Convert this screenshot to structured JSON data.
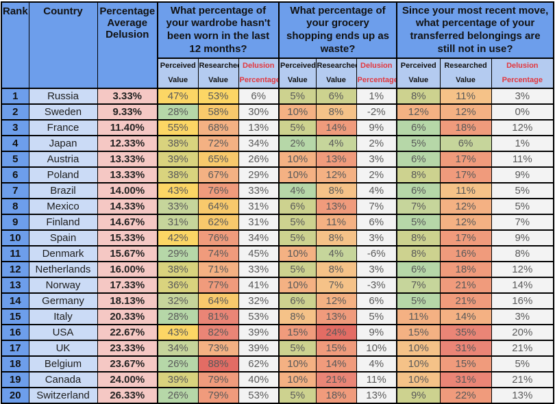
{
  "chart_data": {
    "type": "table",
    "title": "Percentage Average Delusion by Country",
    "headers": {
      "rank": "Rank",
      "country": "Country",
      "avg": "Percentage Average Delusion",
      "groups": [
        "What percentage of your wardrobe hasn't been worn in the last 12 months?",
        "What percentage of your grocery shopping ends up as waste?",
        "Since your most recent move, what percentage of your transferred belongings are still not in use?"
      ],
      "sub": {
        "perceived": "Perceived Value",
        "researched": "Researched Value",
        "delusion": "Delusion Percentage"
      }
    },
    "rows": [
      {
        "rank": "1",
        "country": "Russia",
        "avg": "3.33%",
        "values": [
          [
            "47%",
            "Y"
          ],
          [
            "53%",
            "Y"
          ],
          [
            "6%",
            "W"
          ],
          [
            "5%",
            "K"
          ],
          [
            "6%",
            "K"
          ],
          [
            "1%",
            "W"
          ],
          [
            "8%",
            "K"
          ],
          [
            "11%",
            "T"
          ],
          [
            "3%",
            "W"
          ]
        ]
      },
      {
        "rank": "2",
        "country": "Sweden",
        "avg": "9.33%",
        "values": [
          [
            "28%",
            "G"
          ],
          [
            "58%",
            "YO"
          ],
          [
            "30%",
            "W"
          ],
          [
            "10%",
            "O"
          ],
          [
            "8%",
            "T"
          ],
          [
            "-2%",
            "W"
          ],
          [
            "12%",
            "O"
          ],
          [
            "12%",
            "O"
          ],
          [
            "0%",
            "W"
          ]
        ]
      },
      {
        "rank": "3",
        "country": "France",
        "avg": "11.40%",
        "values": [
          [
            "55%",
            "Y"
          ],
          [
            "68%",
            "O"
          ],
          [
            "13%",
            "W"
          ],
          [
            "5%",
            "K"
          ],
          [
            "14%",
            "S"
          ],
          [
            "9%",
            "W"
          ],
          [
            "6%",
            "G"
          ],
          [
            "18%",
            "S"
          ],
          [
            "12%",
            "W"
          ]
        ]
      },
      {
        "rank": "4",
        "country": "Japan",
        "avg": "12.33%",
        "values": [
          [
            "38%",
            "YG"
          ],
          [
            "72%",
            "O"
          ],
          [
            "34%",
            "W"
          ],
          [
            "2%",
            "G"
          ],
          [
            "4%",
            "GK"
          ],
          [
            "2%",
            "W"
          ],
          [
            "5%",
            "G"
          ],
          [
            "6%",
            "GK"
          ],
          [
            "1%",
            "W"
          ]
        ]
      },
      {
        "rank": "5",
        "country": "Austria",
        "avg": "13.33%",
        "values": [
          [
            "39%",
            "YG"
          ],
          [
            "65%",
            "YO"
          ],
          [
            "26%",
            "W"
          ],
          [
            "10%",
            "O"
          ],
          [
            "13%",
            "S"
          ],
          [
            "3%",
            "W"
          ],
          [
            "6%",
            "G"
          ],
          [
            "17%",
            "S"
          ],
          [
            "11%",
            "W"
          ]
        ]
      },
      {
        "rank": "6",
        "country": "Poland",
        "avg": "13.33%",
        "values": [
          [
            "38%",
            "YG"
          ],
          [
            "67%",
            "O"
          ],
          [
            "29%",
            "W"
          ],
          [
            "10%",
            "O"
          ],
          [
            "12%",
            "O"
          ],
          [
            "2%",
            "W"
          ],
          [
            "8%",
            "K"
          ],
          [
            "17%",
            "S"
          ],
          [
            "9%",
            "W"
          ]
        ]
      },
      {
        "rank": "7",
        "country": "Brazil",
        "avg": "14.00%",
        "values": [
          [
            "43%",
            "Y"
          ],
          [
            "76%",
            "S"
          ],
          [
            "33%",
            "W"
          ],
          [
            "4%",
            "G"
          ],
          [
            "8%",
            "T"
          ],
          [
            "4%",
            "W"
          ],
          [
            "6%",
            "G"
          ],
          [
            "11%",
            "T"
          ],
          [
            "5%",
            "W"
          ]
        ]
      },
      {
        "rank": "8",
        "country": "Mexico",
        "avg": "14.33%",
        "values": [
          [
            "33%",
            "GK"
          ],
          [
            "64%",
            "YO"
          ],
          [
            "31%",
            "W"
          ],
          [
            "6%",
            "K"
          ],
          [
            "13%",
            "S"
          ],
          [
            "7%",
            "W"
          ],
          [
            "7%",
            "GK"
          ],
          [
            "12%",
            "O"
          ],
          [
            "5%",
            "W"
          ]
        ]
      },
      {
        "rank": "9",
        "country": "Finland",
        "avg": "14.67%",
        "values": [
          [
            "31%",
            "GK"
          ],
          [
            "62%",
            "YO"
          ],
          [
            "31%",
            "W"
          ],
          [
            "5%",
            "K"
          ],
          [
            "11%",
            "O"
          ],
          [
            "6%",
            "W"
          ],
          [
            "5%",
            "G"
          ],
          [
            "12%",
            "O"
          ],
          [
            "7%",
            "W"
          ]
        ]
      },
      {
        "rank": "10",
        "country": "Spain",
        "avg": "15.33%",
        "values": [
          [
            "42%",
            "Y"
          ],
          [
            "76%",
            "S"
          ],
          [
            "34%",
            "W"
          ],
          [
            "5%",
            "K"
          ],
          [
            "8%",
            "T"
          ],
          [
            "3%",
            "W"
          ],
          [
            "8%",
            "K"
          ],
          [
            "17%",
            "S"
          ],
          [
            "9%",
            "W"
          ]
        ]
      },
      {
        "rank": "11",
        "country": "Denmark",
        "avg": "15.67%",
        "values": [
          [
            "29%",
            "G"
          ],
          [
            "74%",
            "S"
          ],
          [
            "45%",
            "W"
          ],
          [
            "10%",
            "O"
          ],
          [
            "4%",
            "GK"
          ],
          [
            "-6%",
            "W"
          ],
          [
            "8%",
            "K"
          ],
          [
            "16%",
            "S"
          ],
          [
            "8%",
            "W"
          ]
        ]
      },
      {
        "rank": "12",
        "country": "Netherlands",
        "avg": "16.00%",
        "values": [
          [
            "38%",
            "YG"
          ],
          [
            "71%",
            "O"
          ],
          [
            "33%",
            "W"
          ],
          [
            "5%",
            "K"
          ],
          [
            "8%",
            "T"
          ],
          [
            "3%",
            "W"
          ],
          [
            "6%",
            "G"
          ],
          [
            "18%",
            "S"
          ],
          [
            "12%",
            "W"
          ]
        ]
      },
      {
        "rank": "13",
        "country": "Norway",
        "avg": "17.33%",
        "values": [
          [
            "36%",
            "YG"
          ],
          [
            "77%",
            "S"
          ],
          [
            "41%",
            "W"
          ],
          [
            "10%",
            "O"
          ],
          [
            "7%",
            "T"
          ],
          [
            "-3%",
            "W"
          ],
          [
            "7%",
            "GK"
          ],
          [
            "21%",
            "S"
          ],
          [
            "14%",
            "W"
          ]
        ]
      },
      {
        "rank": "14",
        "country": "Germany",
        "avg": "18.13%",
        "values": [
          [
            "32%",
            "GK"
          ],
          [
            "64%",
            "YO"
          ],
          [
            "32%",
            "W"
          ],
          [
            "6%",
            "K"
          ],
          [
            "12%",
            "O"
          ],
          [
            "6%",
            "W"
          ],
          [
            "5%",
            "G"
          ],
          [
            "21%",
            "S"
          ],
          [
            "16%",
            "W"
          ]
        ]
      },
      {
        "rank": "15",
        "country": "Italy",
        "avg": "20.33%",
        "values": [
          [
            "28%",
            "G"
          ],
          [
            "81%",
            "SR"
          ],
          [
            "53%",
            "W"
          ],
          [
            "8%",
            "T"
          ],
          [
            "13%",
            "S"
          ],
          [
            "5%",
            "W"
          ],
          [
            "11%",
            "O"
          ],
          [
            "14%",
            "O"
          ],
          [
            "3%",
            "W"
          ]
        ]
      },
      {
        "rank": "16",
        "country": "USA",
        "avg": "22.67%",
        "values": [
          [
            "43%",
            "Y"
          ],
          [
            "82%",
            "SR"
          ],
          [
            "39%",
            "W"
          ],
          [
            "15%",
            "S"
          ],
          [
            "24%",
            "R"
          ],
          [
            "9%",
            "W"
          ],
          [
            "15%",
            "O"
          ],
          [
            "35%",
            "SR"
          ],
          [
            "20%",
            "W"
          ]
        ]
      },
      {
        "rank": "17",
        "country": "UK",
        "avg": "23.33%",
        "values": [
          [
            "34%",
            "GK"
          ],
          [
            "73%",
            "O"
          ],
          [
            "39%",
            "W"
          ],
          [
            "5%",
            "K"
          ],
          [
            "15%",
            "S"
          ],
          [
            "10%",
            "W"
          ],
          [
            "10%",
            "T"
          ],
          [
            "31%",
            "SR"
          ],
          [
            "21%",
            "W"
          ]
        ]
      },
      {
        "rank": "18",
        "country": "Belgium",
        "avg": "23.67%",
        "values": [
          [
            "26%",
            "G"
          ],
          [
            "88%",
            "R"
          ],
          [
            "62%",
            "W"
          ],
          [
            "10%",
            "O"
          ],
          [
            "14%",
            "S"
          ],
          [
            "4%",
            "W"
          ],
          [
            "10%",
            "T"
          ],
          [
            "15%",
            "S"
          ],
          [
            "5%",
            "W"
          ]
        ]
      },
      {
        "rank": "19",
        "country": "Canada",
        "avg": "24.00%",
        "values": [
          [
            "39%",
            "YG"
          ],
          [
            "79%",
            "S"
          ],
          [
            "40%",
            "W"
          ],
          [
            "10%",
            "O"
          ],
          [
            "21%",
            "SR"
          ],
          [
            "11%",
            "W"
          ],
          [
            "10%",
            "T"
          ],
          [
            "31%",
            "SR"
          ],
          [
            "21%",
            "W"
          ]
        ]
      },
      {
        "rank": "20",
        "country": "Switzerland",
        "avg": "26.33%",
        "values": [
          [
            "26%",
            "G"
          ],
          [
            "79%",
            "S"
          ],
          [
            "53%",
            "W"
          ],
          [
            "5%",
            "K"
          ],
          [
            "18%",
            "S"
          ],
          [
            "13%",
            "W"
          ],
          [
            "9%",
            "K"
          ],
          [
            "22%",
            "S"
          ],
          [
            "13%",
            "W"
          ]
        ]
      }
    ]
  },
  "palette": {
    "G": "#b6d7a8",
    "GK": "#c6d59b",
    "K": "#cdd28f",
    "YG": "#d9d37e",
    "Y": "#fcd665",
    "YO": "#f8c96c",
    "T": "#f5c288",
    "O": "#f4b183",
    "S": "#f09b7c",
    "SR": "#ea8576",
    "R": "#e36c64",
    "W": "#f3f3f3"
  },
  "colors": {
    "header_blue": "#6d9eeb",
    "subheader_blue": "#b4cbf0",
    "country_blue": "#cbdbf6",
    "avg_pink": "#f5c8c4",
    "delusion_header_red": "#e2383f",
    "value_text_gray": "#595959",
    "border_black": "#000000"
  }
}
